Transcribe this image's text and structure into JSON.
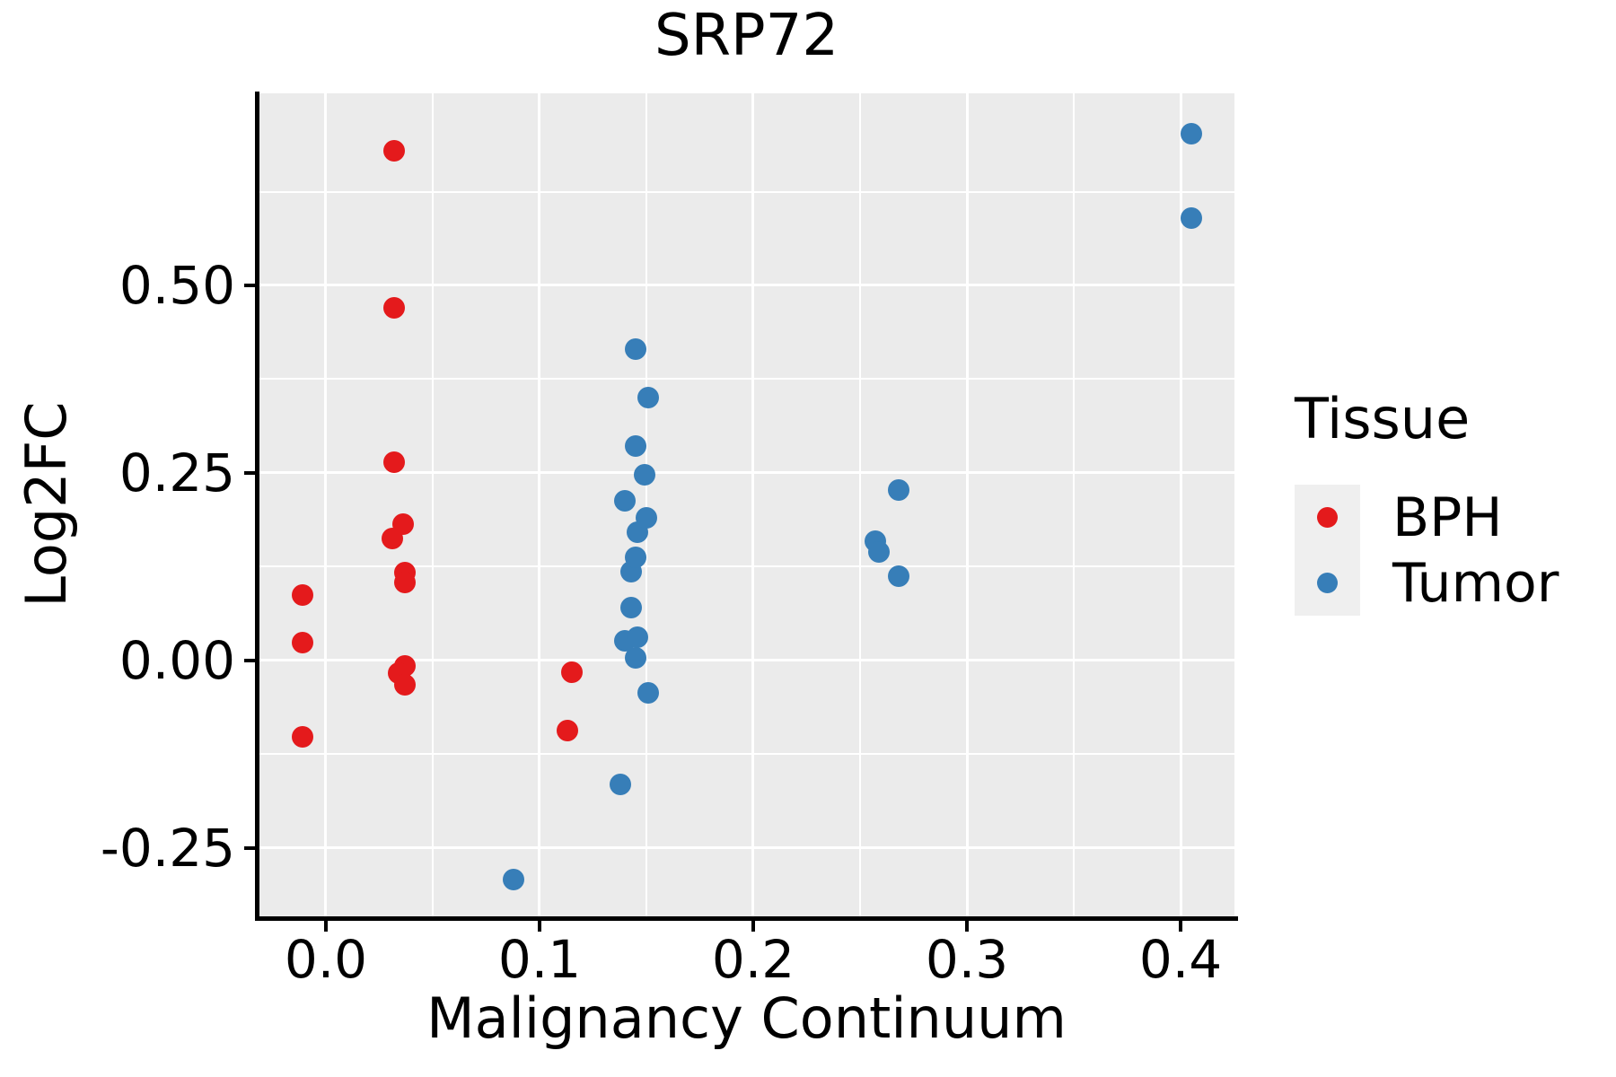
{
  "chart_title": "SRP72",
  "axes": {
    "x_label": "Malignancy Continuum",
    "y_label": "Log2FC"
  },
  "legend": {
    "title": "Tissue",
    "items": [
      {
        "label": "BPH",
        "color": "#E41A1C"
      },
      {
        "label": "Tumor",
        "color": "#377EB8"
      }
    ]
  },
  "colors": {
    "panel_background": "#EBEBEB",
    "gridline": "#FFFFFF",
    "axis_text": "#000000",
    "bph_red": "#E41A1C",
    "tumor_blue": "#377EB8"
  },
  "chart_data": {
    "type": "scatter",
    "title": "SRP72",
    "xlabel": "Malignancy Continuum",
    "ylabel": "Log2FC",
    "xlim": [
      -0.0315,
      0.4252
    ],
    "ylim": [
      -0.341,
      0.756
    ],
    "grid": true,
    "legend_position": "right",
    "x_ticks": [
      {
        "value": 0.0,
        "label": "0.0"
      },
      {
        "value": 0.1,
        "label": "0.1"
      },
      {
        "value": 0.2,
        "label": "0.2"
      },
      {
        "value": 0.3,
        "label": "0.3"
      },
      {
        "value": 0.4,
        "label": "0.4"
      }
    ],
    "y_ticks": [
      {
        "value": -0.25,
        "label": "-0.25"
      },
      {
        "value": 0.0,
        "label": "0.00"
      },
      {
        "value": 0.25,
        "label": "0.25"
      },
      {
        "value": 0.5,
        "label": "0.50"
      }
    ],
    "x_minor": [
      0.05,
      0.15,
      0.25,
      0.35
    ],
    "y_minor": [
      -0.125,
      0.125,
      0.375,
      0.625
    ],
    "series": [
      {
        "name": "BPH",
        "color": "#E41A1C",
        "points": [
          [
            -0.011,
            0.087
          ],
          [
            -0.011,
            0.024
          ],
          [
            -0.011,
            -0.102
          ],
          [
            0.032,
            0.679
          ],
          [
            0.032,
            0.47
          ],
          [
            0.032,
            0.264
          ],
          [
            0.036,
            0.182
          ],
          [
            0.031,
            0.163
          ],
          [
            0.037,
            0.117
          ],
          [
            0.037,
            0.104
          ],
          [
            0.037,
            -0.007
          ],
          [
            0.034,
            -0.017
          ],
          [
            0.037,
            -0.032
          ],
          [
            0.115,
            -0.016
          ],
          [
            0.113,
            -0.093
          ]
        ]
      },
      {
        "name": "Tumor",
        "color": "#377EB8",
        "points": [
          [
            0.088,
            -0.292
          ],
          [
            0.138,
            -0.165
          ],
          [
            0.151,
            -0.043
          ],
          [
            0.145,
            0.004
          ],
          [
            0.14,
            0.026
          ],
          [
            0.146,
            0.031
          ],
          [
            0.143,
            0.071
          ],
          [
            0.143,
            0.118
          ],
          [
            0.145,
            0.138
          ],
          [
            0.146,
            0.171
          ],
          [
            0.15,
            0.19
          ],
          [
            0.14,
            0.213
          ],
          [
            0.149,
            0.248
          ],
          [
            0.145,
            0.286
          ],
          [
            0.151,
            0.35
          ],
          [
            0.145,
            0.415
          ],
          [
            0.257,
            0.159
          ],
          [
            0.259,
            0.145
          ],
          [
            0.268,
            0.227
          ],
          [
            0.268,
            0.112
          ],
          [
            0.405,
            0.702
          ],
          [
            0.405,
            0.59
          ]
        ]
      }
    ]
  }
}
